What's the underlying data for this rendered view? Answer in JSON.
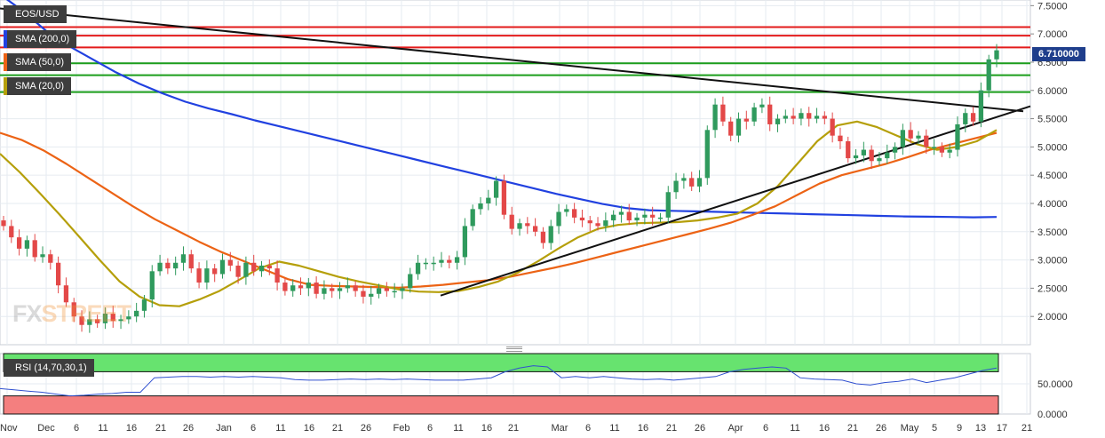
{
  "chart_data": [
    {
      "type": "line",
      "subtype": "candlestick",
      "title": "EOS/USD",
      "x_tick_labels": [
        "Nov",
        "Dec",
        "6",
        "11",
        "16",
        "21",
        "26",
        "Jan",
        "6",
        "11",
        "16",
        "21",
        "26",
        "Feb",
        "6",
        "11",
        "16",
        "21",
        "Mar",
        "6",
        "11",
        "16",
        "21",
        "26",
        "Apr",
        "6",
        "11",
        "16",
        "21",
        "26",
        "May",
        "5",
        "9",
        "13",
        "17",
        "21"
      ],
      "ylim": [
        1.5,
        7.6
      ],
      "y_tick_labels": [
        "7.5000",
        "7.0000",
        "6.5000",
        "6.0000",
        "5.5000",
        "5.0000",
        "4.5000",
        "4.0000",
        "3.5000",
        "3.0000",
        "2.5000",
        "2.0000"
      ],
      "y_ticks": [
        7.5,
        7.0,
        6.5,
        6.0,
        5.5,
        5.0,
        4.5,
        4.0,
        3.5,
        3.0,
        2.5,
        2.0
      ],
      "last_price_label": "6.710000",
      "last_price": 6.71,
      "close": [
        3.6,
        3.4,
        3.2,
        3.35,
        3.05,
        3.1,
        2.95,
        2.55,
        2.25,
        2.0,
        1.85,
        1.95,
        1.88,
        2.05,
        1.92,
        1.95,
        2.0,
        2.1,
        2.3,
        2.8,
        2.95,
        2.85,
        2.95,
        3.1,
        2.85,
        2.6,
        2.85,
        2.75,
        3.0,
        2.9,
        2.7,
        2.95,
        2.8,
        2.9,
        2.85,
        2.6,
        2.45,
        2.55,
        2.5,
        2.6,
        2.4,
        2.5,
        2.45,
        2.5,
        2.55,
        2.45,
        2.35,
        2.4,
        2.5,
        2.45,
        2.45,
        2.5,
        2.75,
        2.95,
        2.95,
        2.95,
        3.0,
        2.95,
        3.05,
        3.6,
        3.9,
        4.0,
        4.1,
        4.4,
        3.8,
        3.55,
        3.65,
        3.6,
        3.5,
        3.3,
        3.6,
        3.85,
        3.9,
        3.75,
        3.7,
        3.65,
        3.6,
        3.7,
        3.8,
        3.85,
        3.7,
        3.75,
        3.8,
        3.75,
        3.75,
        4.2,
        4.4,
        4.45,
        4.3,
        4.45,
        5.3,
        5.75,
        5.45,
        5.2,
        5.5,
        5.45,
        5.7,
        5.75,
        5.4,
        5.5,
        5.55,
        5.5,
        5.6,
        5.5,
        5.55,
        5.5,
        5.2,
        5.1,
        4.8,
        4.85,
        4.95,
        4.75,
        4.8,
        4.9,
        5.0,
        5.3,
        5.15,
        5.2,
        5.0,
        5.0,
        4.9,
        4.95,
        5.4,
        5.6,
        5.45,
        6.0,
        6.55,
        6.71
      ],
      "series": [
        {
          "name": "SMA (200,0)",
          "color": "#2141e0",
          "values": [
            7.7,
            7.4,
            7.05,
            6.78,
            6.55,
            6.32,
            6.12,
            5.95,
            5.8,
            5.68,
            5.58,
            5.47,
            5.37,
            5.27,
            5.17,
            5.07,
            4.97,
            4.87,
            4.77,
            4.67,
            4.57,
            4.47,
            4.37,
            4.27,
            4.17,
            4.08,
            3.99,
            3.92,
            3.88,
            3.87,
            3.86,
            3.85,
            3.84,
            3.83,
            3.82,
            3.81,
            3.8,
            3.79,
            3.78,
            3.77,
            3.765,
            3.76,
            3.755,
            3.76
          ]
        },
        {
          "name": "SMA (50,0)",
          "color": "#ec6315",
          "values": [
            5.25,
            5.12,
            4.93,
            4.7,
            4.45,
            4.2,
            3.95,
            3.72,
            3.52,
            3.32,
            3.14,
            2.98,
            2.82,
            2.66,
            2.56,
            2.54,
            2.53,
            2.52,
            2.51,
            2.53,
            2.56,
            2.6,
            2.64,
            2.7,
            2.78,
            2.86,
            2.95,
            3.05,
            3.15,
            3.25,
            3.35,
            3.45,
            3.55,
            3.66,
            3.8,
            3.95,
            4.15,
            4.35,
            4.5,
            4.6,
            4.7,
            4.82,
            4.95,
            5.05,
            5.15,
            5.25
          ]
        },
        {
          "name": "SMA (20,0)",
          "color": "#b59f0a",
          "values": [
            4.88,
            4.55,
            4.18,
            3.8,
            3.4,
            3.0,
            2.62,
            2.35,
            2.2,
            2.18,
            2.3,
            2.45,
            2.65,
            2.85,
            2.97,
            2.9,
            2.8,
            2.7,
            2.62,
            2.55,
            2.48,
            2.44,
            2.43,
            2.45,
            2.52,
            2.62,
            2.78,
            2.98,
            3.2,
            3.4,
            3.55,
            3.62,
            3.65,
            3.66,
            3.67,
            3.7,
            3.75,
            3.82,
            4.0,
            4.3,
            4.7,
            5.1,
            5.38,
            5.45,
            5.35,
            5.2,
            5.05,
            4.95,
            5.0,
            5.1,
            5.3
          ]
        }
      ],
      "horizontal_levels": [
        {
          "value": 7.12,
          "color": "#e31b1b"
        },
        {
          "value": 6.97,
          "color": "#e31b1b"
        },
        {
          "value": 6.76,
          "color": "#e31b1b"
        },
        {
          "value": 6.48,
          "color": "#1b9e1b"
        },
        {
          "value": 6.27,
          "color": "#1b9e1b"
        },
        {
          "value": 5.97,
          "color": "#1b9e1b"
        }
      ],
      "trendlines": [
        {
          "name": "descending",
          "x": [
            0,
            1152
          ],
          "y": [
            7.45,
            5.63
          ],
          "color": "#111111"
        },
        {
          "name": "ascending",
          "x": [
            496,
            1160
          ],
          "y": [
            2.37,
            5.72
          ],
          "color": "#111111"
        }
      ],
      "colors": {
        "up": "#2f9a5d",
        "down": "#e34848",
        "grid": "#e6ebf1"
      },
      "grid": true,
      "legend_placement": "top-left"
    },
    {
      "type": "line",
      "title": "RSI (14,70,30,1)",
      "ylim": [
        0,
        100
      ],
      "y_tick_labels": [
        "50.0000",
        "0.0000"
      ],
      "y_ticks": [
        50,
        0
      ],
      "overbought": 70,
      "oversold": 30,
      "series": [
        {
          "name": "RSI (14,70,30,1)",
          "color": "#3050d0",
          "values": [
            42,
            40,
            38,
            36,
            33,
            30,
            31,
            33,
            34,
            36,
            36,
            60,
            61,
            62,
            62,
            61,
            62,
            61,
            62,
            61,
            60,
            57,
            56,
            56,
            57,
            58,
            57,
            58,
            57,
            58,
            57,
            56,
            56,
            56,
            58,
            60,
            70,
            76,
            80,
            78,
            60,
            62,
            60,
            62,
            60,
            58,
            57,
            58,
            56,
            58,
            60,
            62,
            70,
            74,
            76,
            78,
            76,
            60,
            58,
            57,
            56,
            50,
            48,
            52,
            54,
            58,
            52,
            56,
            60,
            66,
            72,
            76
          ]
        }
      ],
      "colors": {
        "overbought_zone": "#67e36f",
        "oversold_zone": "#f47f7f",
        "mid_zone": "#ffffff"
      },
      "grid": true
    }
  ],
  "labels": {
    "pair": "EOS/USD",
    "sma200": "SMA (200,0)",
    "sma50": "SMA (50,0)",
    "sma20": "SMA (20,0)",
    "rsi": "RSI (14,70,30,1)",
    "watermark_main": "FX",
    "watermark_accent": "STREET"
  },
  "colors": {
    "sma200": "#2141e0",
    "sma50": "#ec6315",
    "sma20": "#b59f0a",
    "price_tag": "#1f3e8c"
  }
}
